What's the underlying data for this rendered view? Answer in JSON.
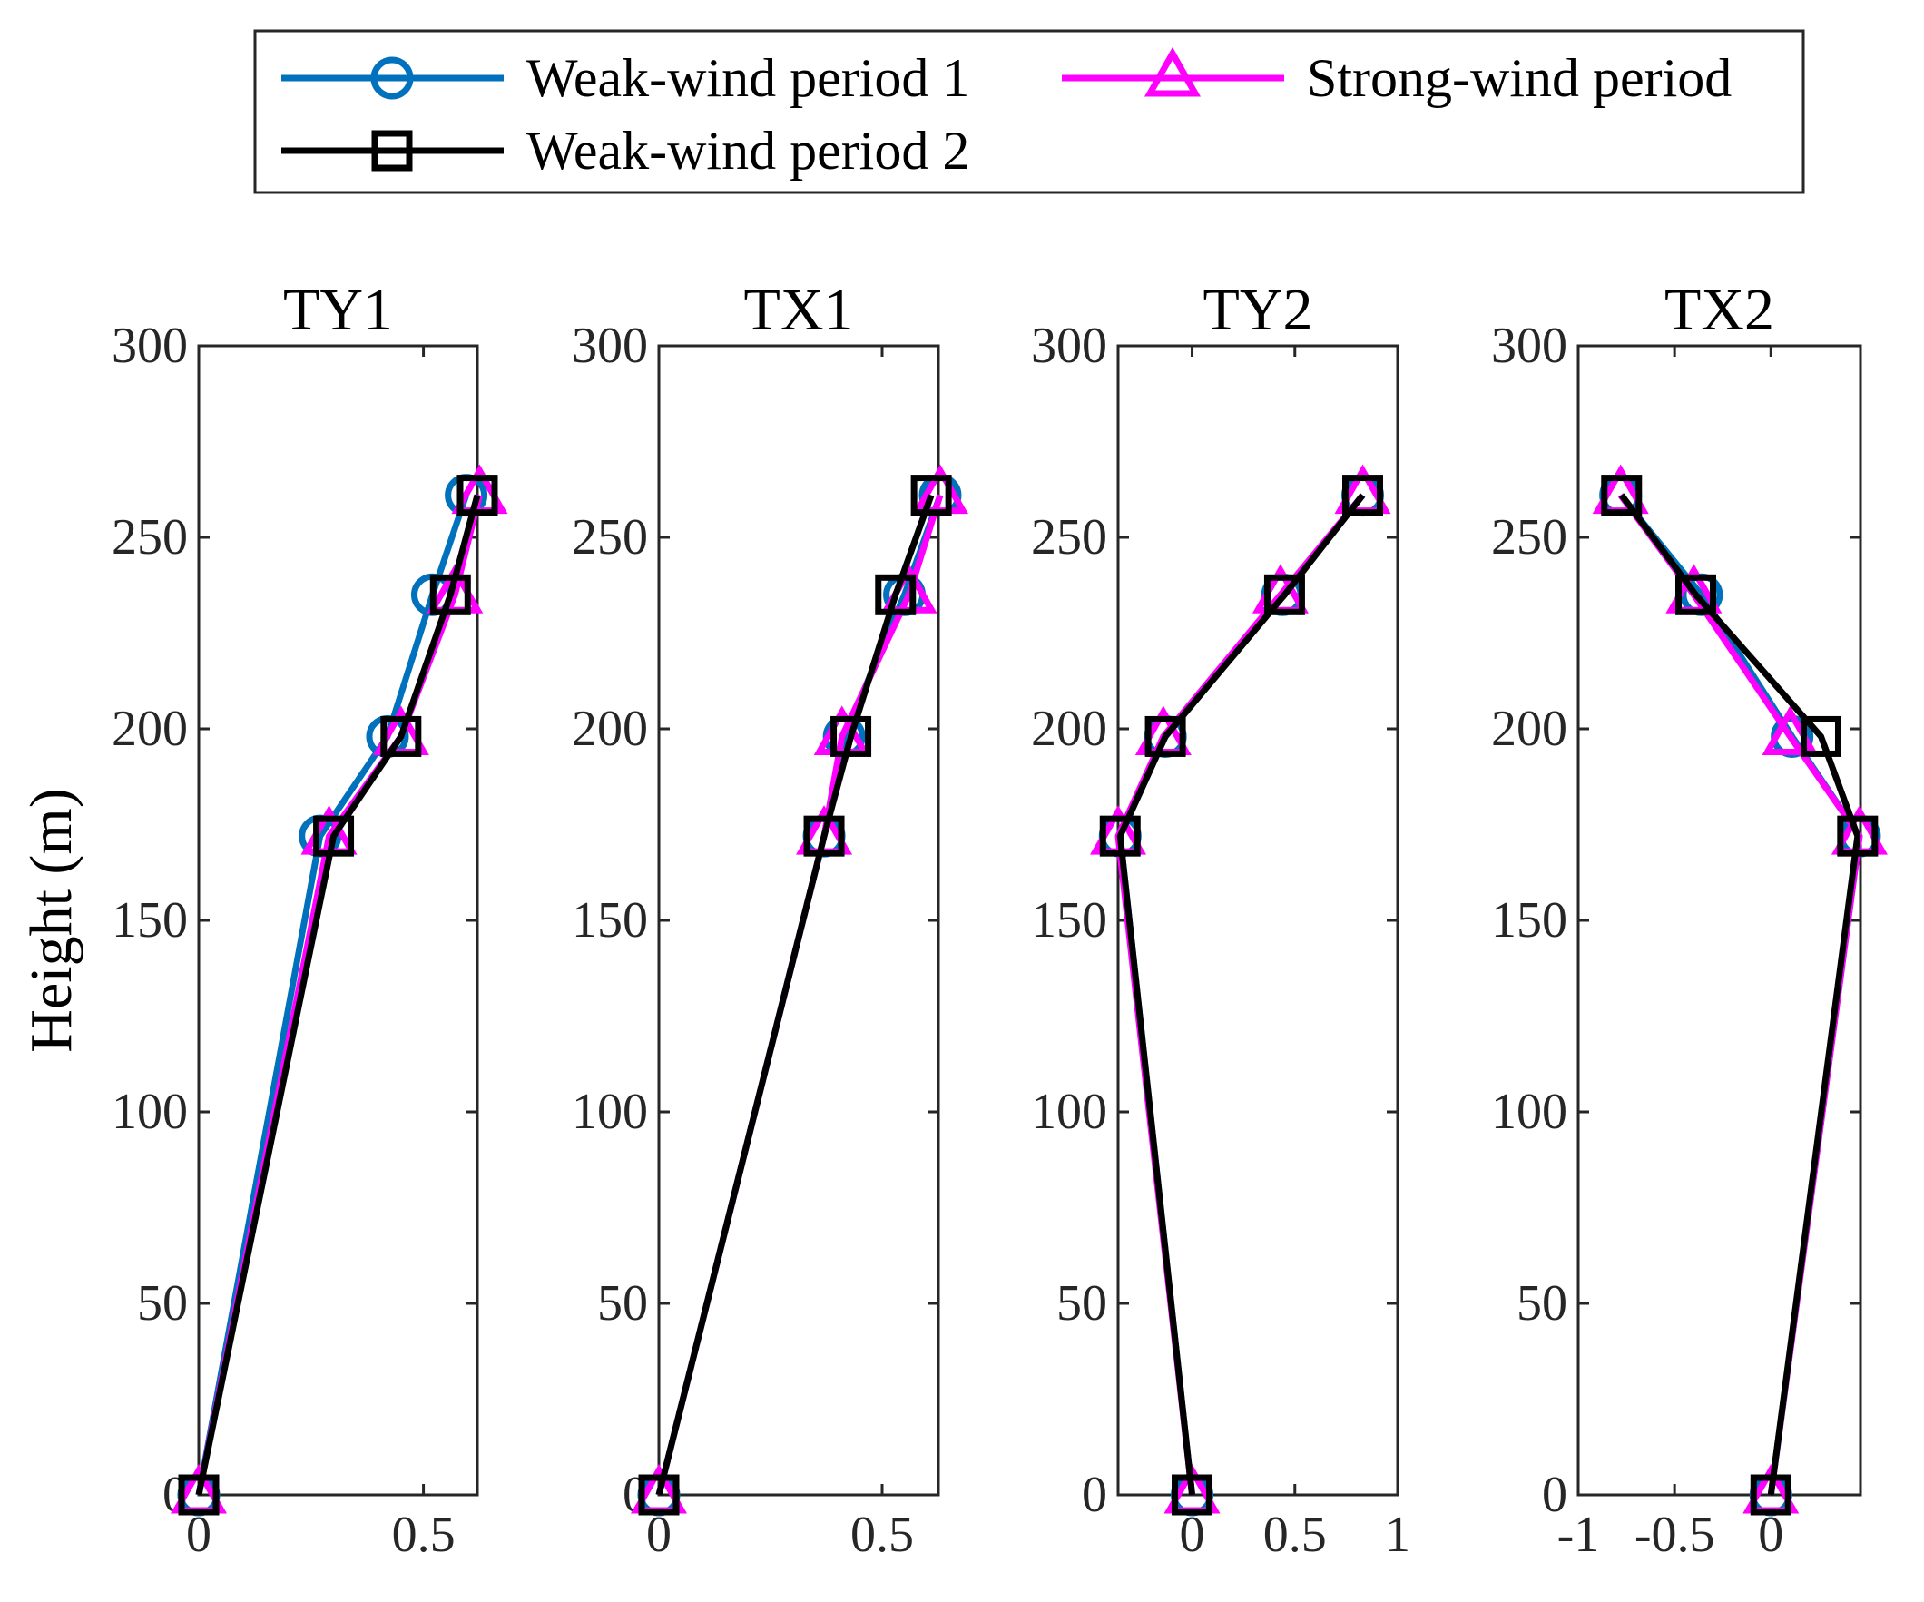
{
  "chart_data": {
    "type": "line",
    "ylabel": "Height (m)",
    "ylim": [
      0,
      300
    ],
    "yticks": [
      0,
      50,
      100,
      150,
      200,
      250,
      300
    ],
    "heights": [
      0,
      172,
      198,
      235,
      261
    ],
    "legend": {
      "placement": "top-center",
      "entries": [
        {
          "name": "Weak-wind period 1",
          "color": "#0072BD",
          "marker": "circle"
        },
        {
          "name": "Weak-wind period 2",
          "color": "#000000",
          "marker": "square"
        },
        {
          "name": "Strong-wind period",
          "color": "#FF00FF",
          "marker": "triangle"
        }
      ]
    },
    "panels": [
      {
        "title": "TY1",
        "xlim": [
          0,
          0.62
        ],
        "xticks": [
          0,
          0.5
        ],
        "xtick_labels": [
          "0",
          "0.5"
        ],
        "series": [
          {
            "name": "Weak-wind period 1",
            "x": [
              0,
              0.27,
              0.42,
              0.52,
              0.595
            ]
          },
          {
            "name": "Strong-wind period",
            "x": [
              0,
              0.29,
              0.45,
              0.57,
              0.625
            ]
          },
          {
            "name": "Weak-wind period 2",
            "x": [
              0,
              0.3,
              0.45,
              0.56,
              0.62
            ]
          }
        ]
      },
      {
        "title": "TX1",
        "xlim": [
          0,
          0.626
        ],
        "xticks": [
          0,
          0.5
        ],
        "xtick_labels": [
          "0",
          "0.5"
        ],
        "series": [
          {
            "name": "Weak-wind period 1",
            "x": [
              0,
              0.37,
              0.415,
              0.55,
              0.63
            ]
          },
          {
            "name": "Strong-wind period",
            "x": [
              0,
              0.37,
              0.41,
              0.56,
              0.63
            ]
          },
          {
            "name": "Weak-wind period 2",
            "x": [
              0,
              0.37,
              0.43,
              0.53,
              0.61
            ]
          }
        ]
      },
      {
        "title": "TY2",
        "xlim": [
          -0.36,
          1
        ],
        "xticks": [
          0,
          0.5,
          1
        ],
        "xtick_labels": [
          "0",
          "0.5",
          "1"
        ],
        "series": [
          {
            "name": "Weak-wind period 1",
            "x": [
              0,
              -0.35,
              -0.13,
              0.44,
              0.83
            ]
          },
          {
            "name": "Strong-wind period",
            "x": [
              0,
              -0.36,
              -0.14,
              0.43,
              0.83
            ]
          },
          {
            "name": "Weak-wind period 2",
            "x": [
              0,
              -0.35,
              -0.13,
              0.45,
              0.83
            ]
          }
        ]
      },
      {
        "title": "TX2",
        "xlim": [
          -1,
          0.465
        ],
        "xticks": [
          -1,
          -0.5,
          0
        ],
        "xtick_labels": [
          "-1",
          "-0.5",
          "0"
        ],
        "series": [
          {
            "name": "Weak-wind period 1",
            "x": [
              0,
              0.46,
              0.11,
              -0.36,
              -0.78
            ]
          },
          {
            "name": "Strong-wind period",
            "x": [
              0,
              0.46,
              0.1,
              -0.4,
              -0.78
            ]
          },
          {
            "name": "Weak-wind period 2",
            "x": [
              0,
              0.45,
              0.26,
              -0.39,
              -0.775
            ]
          }
        ]
      }
    ]
  }
}
